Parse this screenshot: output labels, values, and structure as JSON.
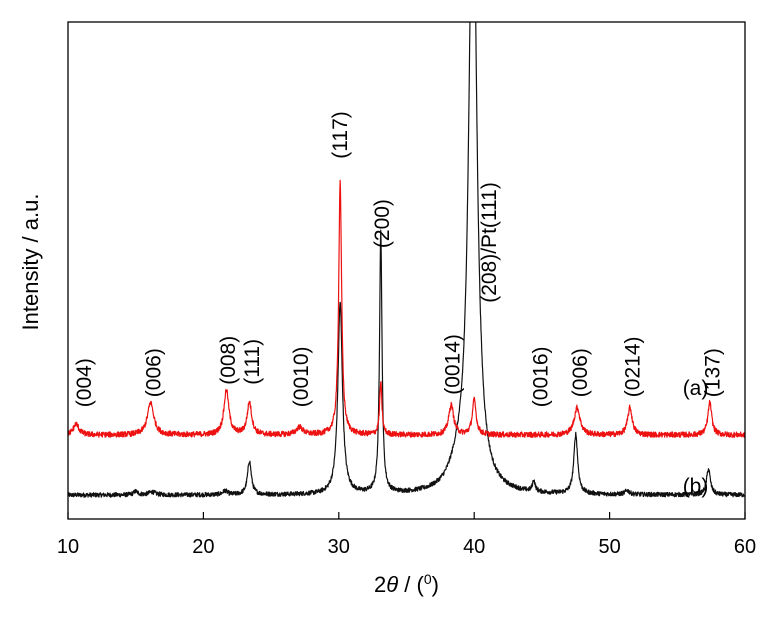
{
  "chart_data": {
    "type": "line",
    "xlabel": "2θ / (°)",
    "xlabel_parts": {
      "prefix": "2",
      "theta": "θ",
      "middle": " / (",
      "degree": "0",
      "suffix": ")"
    },
    "ylabel": "Intensity / a.u.",
    "xlim": [
      10,
      60
    ],
    "ylim": [
      0,
      100
    ],
    "xticks": [
      "10",
      "20",
      "30",
      "40",
      "50",
      "60"
    ],
    "grid": false,
    "series": [
      {
        "name": "(a)",
        "color": "#ee1111",
        "baseline": 16.9,
        "noise": 0.55,
        "peaks": [
          {
            "x": 10.6,
            "h": 2.2,
            "w": 0.25
          },
          {
            "x": 16.1,
            "h": 6.5,
            "w": 0.28
          },
          {
            "x": 21.7,
            "h": 9.0,
            "w": 0.22
          },
          {
            "x": 23.4,
            "h": 6.5,
            "w": 0.2
          },
          {
            "x": 27.1,
            "h": 1.5,
            "w": 0.3
          },
          {
            "x": 30.1,
            "h": 51.0,
            "w": 0.13
          },
          {
            "x": 33.1,
            "h": 10.5,
            "w": 0.1
          },
          {
            "x": 38.3,
            "h": 6.0,
            "w": 0.22
          },
          {
            "x": 40.0,
            "h": 7.0,
            "w": 0.17
          },
          {
            "x": 47.6,
            "h": 5.5,
            "w": 0.26
          },
          {
            "x": 51.5,
            "h": 5.5,
            "w": 0.2
          },
          {
            "x": 57.4,
            "h": 6.5,
            "w": 0.17
          }
        ]
      },
      {
        "name": "(b)",
        "color": "#111111",
        "baseline": 4.8,
        "noise": 0.45,
        "peaks": [
          {
            "x": 15.0,
            "h": 0.7,
            "w": 0.2
          },
          {
            "x": 16.2,
            "h": 0.6,
            "w": 0.3
          },
          {
            "x": 21.6,
            "h": 0.8,
            "w": 0.2
          },
          {
            "x": 23.4,
            "h": 6.8,
            "w": 0.17
          },
          {
            "x": 30.1,
            "h": 38.5,
            "w": 0.2
          },
          {
            "x": 33.1,
            "h": 52.5,
            "w": 0.11
          },
          {
            "x": 38.7,
            "h": 3.0,
            "w": 0.7
          },
          {
            "x": 39.9,
            "h": 130.0,
            "w": 0.35
          },
          {
            "x": 44.4,
            "h": 2.2,
            "w": 0.12
          },
          {
            "x": 47.5,
            "h": 12.0,
            "w": 0.17
          },
          {
            "x": 51.3,
            "h": 0.8,
            "w": 0.2
          },
          {
            "x": 57.3,
            "h": 5.2,
            "w": 0.17
          }
        ]
      }
    ],
    "peak_labels": [
      {
        "text": "(004)",
        "x": 11.2,
        "y": 22.5
      },
      {
        "text": "(006)",
        "x": 16.3,
        "y": 24.5
      },
      {
        "text": "(008)",
        "x": 21.8,
        "y": 27.0
      },
      {
        "text": "(111)",
        "x": 23.6,
        "y": 27.0
      },
      {
        "text": "(0010)",
        "x": 27.2,
        "y": 22.5
      },
      {
        "text": "(117)",
        "x": 30.1,
        "y": 72.5
      },
      {
        "text": "(200)",
        "x": 33.2,
        "y": 54.5
      },
      {
        "text": "(0014)",
        "x": 38.4,
        "y": 25.0
      },
      {
        "text": "(208)/Pt(111)",
        "x": 41.1,
        "y": 43.5
      },
      {
        "text": "(0016)",
        "x": 44.9,
        "y": 22.5
      },
      {
        "text": "(006)",
        "x": 47.8,
        "y": 24.5
      },
      {
        "text": "(0214)",
        "x": 51.7,
        "y": 24.5
      },
      {
        "text": "(137)",
        "x": 57.6,
        "y": 24.5
      }
    ],
    "series_labels": [
      {
        "text": "(a)",
        "x": 55.4,
        "y": 25.0
      },
      {
        "text": "(b)",
        "x": 55.4,
        "y": 5.2
      }
    ]
  }
}
